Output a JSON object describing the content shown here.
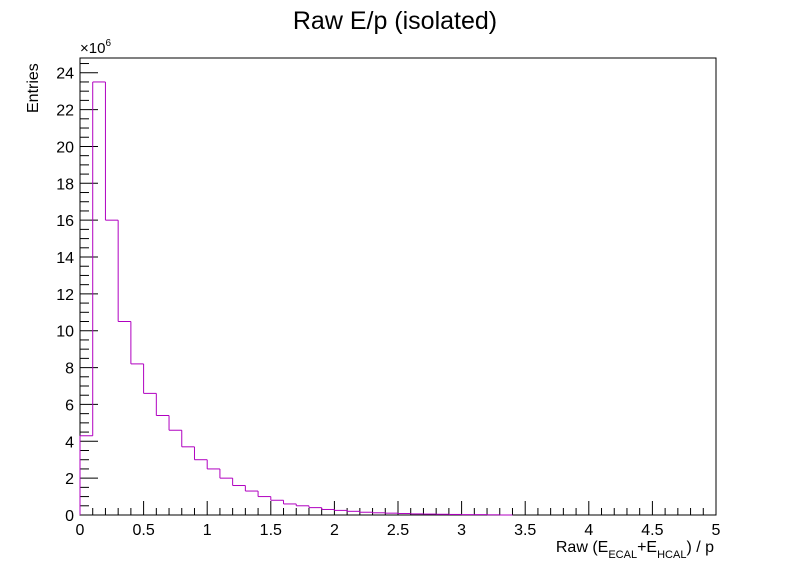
{
  "chart_data": {
    "type": "histogram",
    "title": "Raw E/p (isolated)",
    "xlabel": {
      "prefix": "Raw (E",
      "sub1": "ECAL",
      "mid": "+E",
      "sub2": "HCAL",
      "suffix": ") / p"
    },
    "ylabel": "Entries",
    "y_multiplier": {
      "base": "×10",
      "exponent": "6"
    },
    "xlim": [
      0,
      5
    ],
    "ylim": [
      0,
      24.8
    ],
    "xticks": [
      0,
      0.5,
      1,
      1.5,
      2,
      2.5,
      3,
      3.5,
      4,
      4.5,
      5
    ],
    "xtick_labels": [
      "0",
      "0.5",
      "1",
      "1.5",
      "2",
      "2.5",
      "3",
      "3.5",
      "4",
      "4.5",
      "5"
    ],
    "yticks": [
      0,
      2,
      4,
      6,
      8,
      10,
      12,
      14,
      16,
      18,
      20,
      22,
      24
    ],
    "ytick_labels": [
      "0",
      "2",
      "4",
      "6",
      "8",
      "10",
      "12",
      "14",
      "16",
      "18",
      "20",
      "22",
      "24"
    ],
    "bin_width": 0.1,
    "x_start": 0.0,
    "values": [
      4.3,
      23.5,
      16.0,
      10.5,
      8.2,
      6.6,
      5.4,
      4.6,
      3.7,
      3.0,
      2.5,
      2.0,
      1.6,
      1.3,
      1.0,
      0.8,
      0.6,
      0.5,
      0.4,
      0.3,
      0.25,
      0.2,
      0.15,
      0.12,
      0.1,
      0.08,
      0.06,
      0.05,
      0.04,
      0.03,
      0.02,
      0.02,
      0.01,
      0.0
    ],
    "line_color": "#b000c0",
    "grid": false
  }
}
